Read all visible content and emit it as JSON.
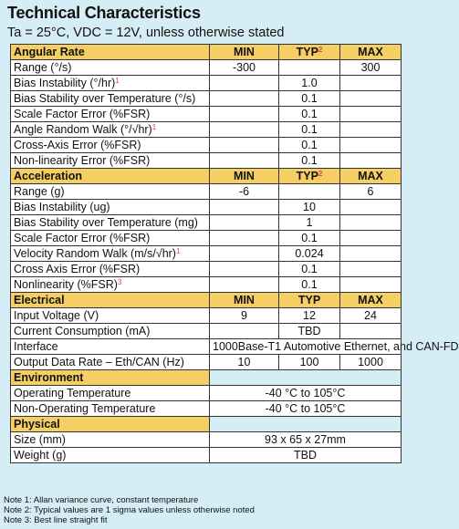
{
  "title": "Technical Characteristics",
  "subtitle": "Ta = 25°C, VDC = 12V, unless otherwise stated",
  "angular": {
    "header": "Angular Rate",
    "min": "MIN",
    "typ": "TYP",
    "typ_sup": "2",
    "max": "MAX",
    "range": {
      "label": "Range (°/s)",
      "min": "-300",
      "max": "300"
    },
    "bias_instability": {
      "label": "Bias Instability (°/hr)",
      "sup": "1",
      "typ": "1.0"
    },
    "bias_stability_temp": {
      "label": "Bias Stability over Temperature (°/s)",
      "typ": "0.1"
    },
    "scale_factor": {
      "label": "Scale Factor Error (%FSR)",
      "typ": "0.1"
    },
    "arw": {
      "label": "Angle Random Walk (°/√hr)",
      "sup": "1",
      "typ": "0.1"
    },
    "cross_axis": {
      "label": "Cross-Axis Error (%FSR)",
      "typ": "0.1"
    },
    "nonlinearity": {
      "label": "Non-linearity Error (%FSR)",
      "typ": "0.1"
    }
  },
  "accel": {
    "header": "Acceleration",
    "min": "MIN",
    "typ": "TYP",
    "typ_sup": "2",
    "max": "MAX",
    "range": {
      "label": "Range (g)",
      "min": "-6",
      "max": "6"
    },
    "bias_instability": {
      "label": "Bias Instability (ug)",
      "typ": "10"
    },
    "bias_stability_temp": {
      "label": "Bias Stability over Temperature (mg)",
      "typ": "1"
    },
    "scale_factor": {
      "label": "Scale Factor Error (%FSR)",
      "typ": "0.1"
    },
    "vrw": {
      "label": "Velocity Random Walk (m/s/√hr)",
      "sup": "1",
      "typ": "0.024"
    },
    "cross_axis": {
      "label": "Cross Axis Error (%FSR)",
      "typ": "0.1"
    },
    "nonlinearity": {
      "label": "Nonlinearity (%FSR)",
      "sup": "3",
      "typ": "0.1"
    }
  },
  "electrical": {
    "header": "Electrical",
    "min": "MIN",
    "typ": "TYP",
    "max": "MAX",
    "input_voltage": {
      "label": "Input Voltage (V)",
      "min": "9",
      "typ": "12",
      "max": "24"
    },
    "current": {
      "label": "Current Consumption (mA)",
      "typ": "TBD"
    },
    "interface": {
      "label": "Interface",
      "value": "1000Base-T1 Automotive Ethernet, and CAN-FD"
    },
    "output_rate": {
      "label": "Output Data Rate – Eth/CAN (Hz)",
      "min": "10",
      "typ": "100",
      "max": "1000"
    }
  },
  "environment": {
    "header": "Environment",
    "operating": {
      "label": "Operating Temperature",
      "value": "-40 °C to 105°C"
    },
    "non_operating": {
      "label": "Non-Operating Temperature",
      "value": "-40 °C to 105°C"
    }
  },
  "physical": {
    "header": "Physical",
    "size": {
      "label": "Size (mm)",
      "value": "93 x 65 x 27mm"
    },
    "weight": {
      "label": "Weight (g)",
      "value": "TBD"
    }
  },
  "notes": [
    "Note 1: Allan variance curve, constant temperature",
    "Note 2: Typical values are 1 sigma values unless otherwise noted",
    "Note 3: Best line straight fit"
  ]
}
